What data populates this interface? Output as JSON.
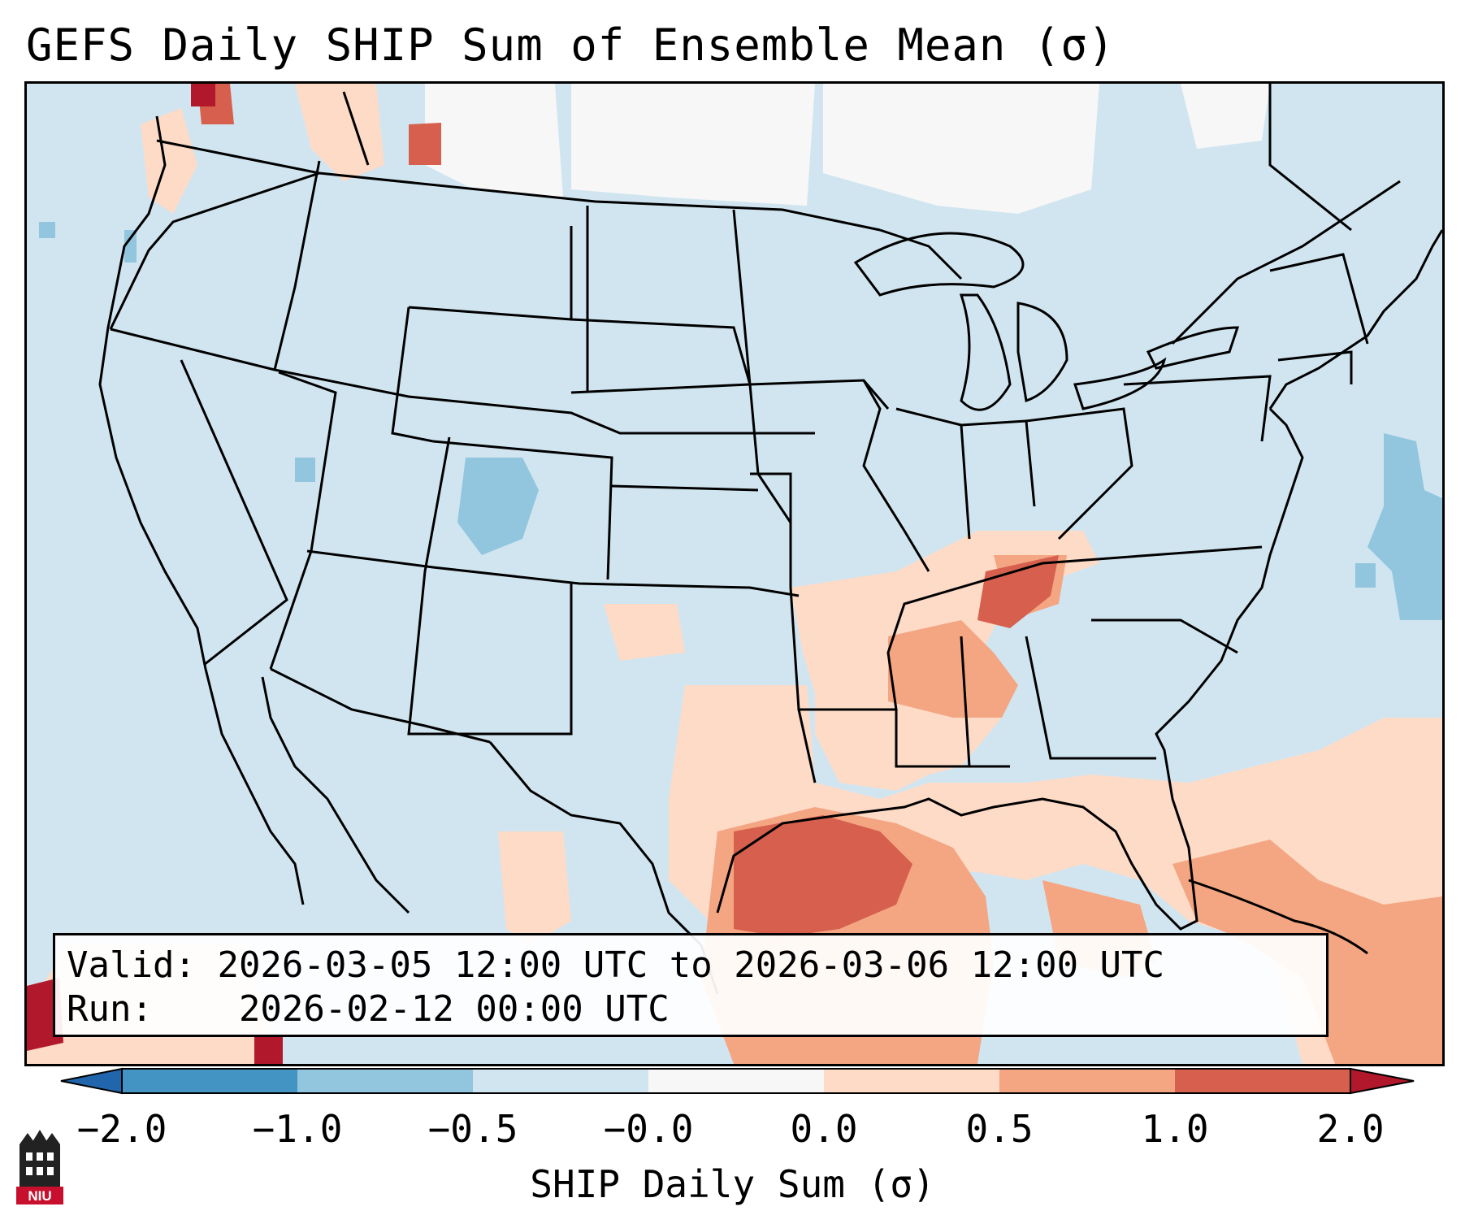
{
  "title": "GEFS Daily SHIP Sum of Ensemble Mean (σ)",
  "info": {
    "valid_label": "Valid:",
    "valid_value": "2026-03-05 12:00 UTC to 2026-03-06 12:00 UTC",
    "run_label": "Run:",
    "run_value": "2026-02-12 00:00 UTC"
  },
  "colorbar": {
    "label": "SHIP Daily Sum (σ)",
    "ticks": [
      "−2.0",
      "−1.0",
      "−0.5",
      "−0.0",
      "0.0",
      "0.5",
      "1.0",
      "2.0"
    ],
    "bins": [
      {
        "range": "-2.0 to -1.0",
        "color": "#4393c3"
      },
      {
        "range": "-1.0 to -0.5",
        "color": "#92c5de"
      },
      {
        "range": "-0.5 to -0.0",
        "color": "#d1e5f0"
      },
      {
        "range": "-0.0 to 0.0",
        "color": "#f7f7f7"
      },
      {
        "range": "0.0 to 0.5",
        "color": "#fddbc7"
      },
      {
        "range": "0.5 to 1.0",
        "color": "#f4a582"
      },
      {
        "range": "1.0 to 2.0",
        "color": "#d6604d"
      }
    ],
    "under_color": "#2166ac",
    "over_color": "#b2182b"
  },
  "map": {
    "region": "Contiguous United States, southern Canada, northern Mexico, Gulf of Mexico",
    "background_color": "#d1e5f0",
    "features": [
      "state borders",
      "coastlines",
      "national borders"
    ]
  },
  "logo": {
    "text": "NIU",
    "icon": "niu-building-logo-icon"
  }
}
